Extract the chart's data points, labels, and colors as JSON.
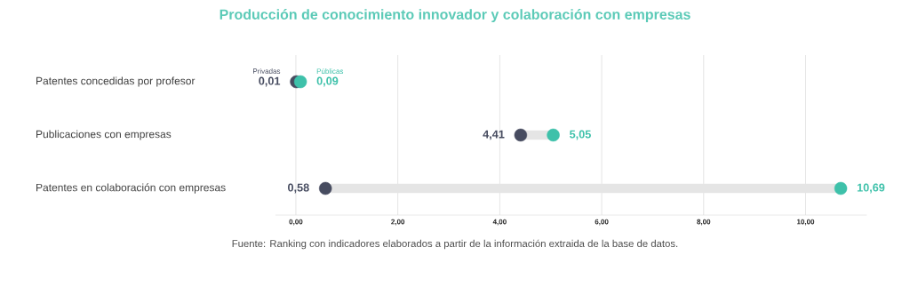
{
  "chart_data": {
    "type": "scatter",
    "orientation": "horizontal",
    "title": "Producción de conocimiento innovador y colaboración con empresas",
    "categories": [
      "Patentes concedidas por profesor",
      "Publicaciones con empresas",
      "Patentes en colaboración con empresas"
    ],
    "series": [
      {
        "name": "Privadas",
        "color": "#474c60",
        "values": [
          0.01,
          4.41,
          0.58
        ],
        "value_labels": [
          "0,01",
          "4,41",
          "0,58"
        ]
      },
      {
        "name": "Públicas",
        "color": "#3ec1aa",
        "values": [
          0.09,
          5.05,
          10.69
        ],
        "value_labels": [
          "0,09",
          "5,05",
          "10,69"
        ]
      }
    ],
    "xlim": [
      -0.4,
      11.2
    ],
    "xticks": [
      {
        "value": 0,
        "label": "0,00"
      },
      {
        "value": 2,
        "label": "2,00"
      },
      {
        "value": 4,
        "label": "4,00"
      },
      {
        "value": 6,
        "label": "6,00"
      },
      {
        "value": 8,
        "label": "8,00"
      },
      {
        "value": 10,
        "label": "10,00"
      }
    ],
    "grid": "x",
    "annotations": [
      "Fuente: Ranking con indicadores elaborados a partir de la información extraida de la base de datos."
    ]
  }
}
